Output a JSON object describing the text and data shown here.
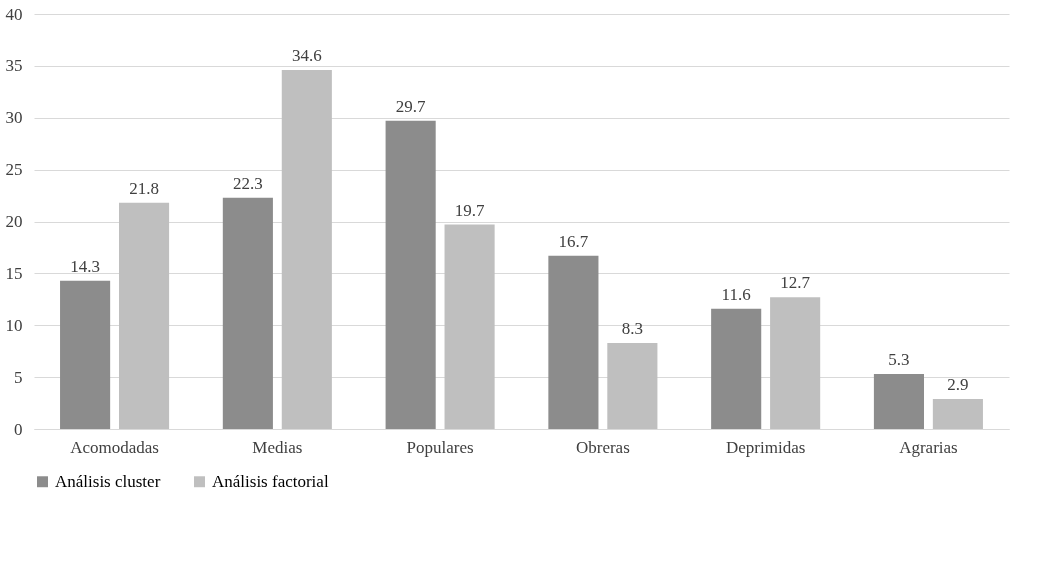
{
  "chart_data": {
    "type": "bar",
    "categories": [
      "Acomodadas",
      "Medias",
      "Populares",
      "Obreras",
      "Deprimidas",
      "Agrarias"
    ],
    "series": [
      {
        "name": "Análisis cluster",
        "color": "#8c8c8c",
        "values": [
          14.3,
          22.3,
          29.7,
          16.7,
          11.6,
          5.3
        ]
      },
      {
        "name": "Análisis factorial",
        "color": "#bfbfbf",
        "values": [
          21.8,
          34.6,
          19.7,
          8.3,
          12.7,
          2.9
        ]
      }
    ],
    "ylim": [
      0,
      40
    ],
    "yticks": [
      0,
      5,
      10,
      15,
      20,
      25,
      30,
      35,
      40
    ],
    "grid": "y",
    "legend": "bottom",
    "data_labels": true
  }
}
